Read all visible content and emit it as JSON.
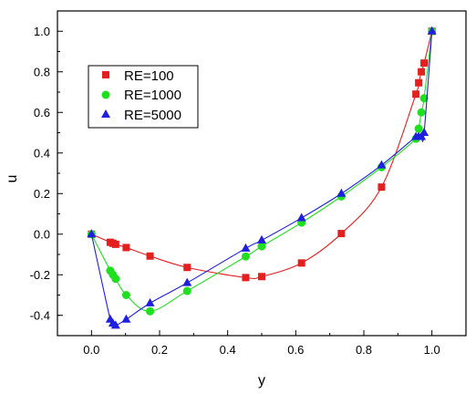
{
  "chart_data": {
    "type": "scatter",
    "xlabel": "y",
    "ylabel": "u",
    "xlim": [
      -0.1,
      1.1
    ],
    "ylim": [
      -0.5,
      1.1
    ],
    "x_ticks": [
      "0.0",
      "0.2",
      "0.4",
      "0.6",
      "0.8",
      "1.0"
    ],
    "y_ticks": [
      "-0.4",
      "-0.2",
      "0.0",
      "0.2",
      "0.4",
      "0.6",
      "0.8",
      "1.0"
    ],
    "legend_position": "top-left",
    "series": [
      {
        "name": "RE=100",
        "color": "#e41f1f",
        "marker": "square",
        "points": [
          [
            0.0,
            0.0
          ],
          [
            0.055,
            -0.04
          ],
          [
            0.063,
            -0.045
          ],
          [
            0.071,
            -0.05
          ],
          [
            0.102,
            -0.066
          ],
          [
            0.172,
            -0.108
          ],
          [
            0.281,
            -0.164
          ],
          [
            0.453,
            -0.214
          ],
          [
            0.5,
            -0.209
          ],
          [
            0.617,
            -0.142
          ],
          [
            0.734,
            0.003
          ],
          [
            0.852,
            0.232
          ],
          [
            0.953,
            0.69
          ],
          [
            0.961,
            0.746
          ],
          [
            0.969,
            0.8
          ],
          [
            0.977,
            0.843
          ],
          [
            1.0,
            1.0
          ]
        ]
      },
      {
        "name": "RE=1000",
        "color": "#1fe01f",
        "marker": "circle",
        "points": [
          [
            0.0,
            0.0
          ],
          [
            0.055,
            -0.18
          ],
          [
            0.063,
            -0.2
          ],
          [
            0.071,
            -0.22
          ],
          [
            0.102,
            -0.3
          ],
          [
            0.172,
            -0.38
          ],
          [
            0.281,
            -0.28
          ],
          [
            0.453,
            -0.11
          ],
          [
            0.5,
            -0.06
          ],
          [
            0.617,
            0.057
          ],
          [
            0.734,
            0.186
          ],
          [
            0.852,
            0.33
          ],
          [
            0.953,
            0.47
          ],
          [
            0.961,
            0.52
          ],
          [
            0.969,
            0.6
          ],
          [
            0.977,
            0.67
          ],
          [
            1.0,
            1.0
          ]
        ]
      },
      {
        "name": "RE=5000",
        "color": "#1f1fe0",
        "marker": "triangle",
        "points": [
          [
            0.0,
            0.0
          ],
          [
            0.055,
            -0.42
          ],
          [
            0.063,
            -0.44
          ],
          [
            0.071,
            -0.45
          ],
          [
            0.102,
            -0.42
          ],
          [
            0.172,
            -0.34
          ],
          [
            0.281,
            -0.24
          ],
          [
            0.453,
            -0.07
          ],
          [
            0.5,
            -0.03
          ],
          [
            0.617,
            0.08
          ],
          [
            0.734,
            0.2
          ],
          [
            0.852,
            0.34
          ],
          [
            0.953,
            0.48
          ],
          [
            0.961,
            0.48
          ],
          [
            0.969,
            0.48
          ],
          [
            0.977,
            0.5
          ],
          [
            1.0,
            1.0
          ]
        ]
      }
    ]
  }
}
